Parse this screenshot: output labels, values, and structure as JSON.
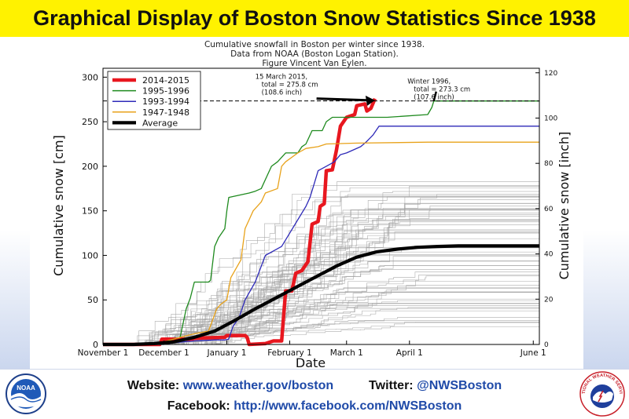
{
  "banner": {
    "title": "Graphical Display of Boston Snow Statistics Since 1938"
  },
  "footer": {
    "website_label": "Website:",
    "website_url": "www.weather.gov/boston",
    "twitter_label": "Twitter:",
    "twitter_handle": "@NWSBoston",
    "facebook_label": "Facebook:",
    "facebook_url": "http://www.facebook.com/NWSBoston"
  },
  "logos": {
    "left_text": "NOAA",
    "right_text": "NATIONAL WEATHER SERVICE"
  },
  "chart_data": {
    "type": "line",
    "title_lines": [
      "Cumulative snowfall in Boston per winter since 1938.",
      "Data from NOAA (Boston Logan Station).",
      "Figure Vincent Van Eylen."
    ],
    "xlabel": "Date",
    "ylabel": "Cumulative snow [cm]",
    "ylabel_right": "Cumulative snow [inch]",
    "xlim": [
      0,
      215
    ],
    "ylim": [
      0,
      310
    ],
    "ylim_right": [
      0,
      122
    ],
    "x_ticks": [
      {
        "x": 0,
        "label": "November 1"
      },
      {
        "x": 30,
        "label": "December 1"
      },
      {
        "x": 61,
        "label": "January 1"
      },
      {
        "x": 92,
        "label": "February 1"
      },
      {
        "x": 120,
        "label": "March 1"
      },
      {
        "x": 151,
        "label": "April 1"
      },
      {
        "x": 212,
        "label": "June 1"
      }
    ],
    "y_ticks": [
      0,
      50,
      100,
      150,
      200,
      250,
      300
    ],
    "y_ticks_right": [
      0,
      20,
      40,
      60,
      80,
      100,
      120
    ],
    "reference_line": {
      "y": 273.3,
      "style": "dashed"
    },
    "annotations": [
      {
        "lines": [
          "15 March 2015,",
          "total = 275.8 cm",
          "(108.6 inch)"
        ],
        "target": [
          134,
          275.8
        ],
        "text_at": [
          75,
          298
        ]
      },
      {
        "lines": [
          "Winter 1996,",
          "total = 273.3 cm",
          "(107.6 inch)"
        ],
        "target": [
          163,
          273.3
        ],
        "text_at": [
          150,
          293
        ]
      }
    ],
    "legend_position": "top-left",
    "series": [
      {
        "name": "2014-2015",
        "color": "#e8171f",
        "width": 4.5,
        "points": [
          [
            0,
            0
          ],
          [
            28,
            0
          ],
          [
            29,
            6
          ],
          [
            44,
            6
          ],
          [
            45,
            7
          ],
          [
            60,
            8
          ],
          [
            61,
            10
          ],
          [
            70,
            10
          ],
          [
            71,
            8
          ],
          [
            72,
            0
          ],
          [
            80,
            1
          ],
          [
            84,
            4
          ],
          [
            88,
            4
          ],
          [
            90,
            60
          ],
          [
            93,
            60
          ],
          [
            95,
            80
          ],
          [
            98,
            83
          ],
          [
            101,
            93
          ],
          [
            103,
            135
          ],
          [
            106,
            138
          ],
          [
            107,
            155
          ],
          [
            109,
            158
          ],
          [
            110,
            195
          ],
          [
            113,
            196
          ],
          [
            115,
            218
          ],
          [
            117,
            245
          ],
          [
            120,
            255
          ],
          [
            124,
            258
          ],
          [
            125,
            268
          ],
          [
            129,
            270
          ],
          [
            130,
            262
          ],
          [
            132,
            265
          ],
          [
            134,
            275.8
          ]
        ]
      },
      {
        "name": "1995-1996",
        "color": "#1e8a1e",
        "width": 1.3,
        "points": [
          [
            0,
            0
          ],
          [
            30,
            0
          ],
          [
            33,
            5
          ],
          [
            38,
            8
          ],
          [
            41,
            40
          ],
          [
            43,
            52
          ],
          [
            45,
            70
          ],
          [
            52,
            70
          ],
          [
            53,
            72
          ],
          [
            55,
            110
          ],
          [
            57,
            120
          ],
          [
            60,
            130
          ],
          [
            61,
            150
          ],
          [
            62,
            165
          ],
          [
            68,
            168
          ],
          [
            72,
            170
          ],
          [
            75,
            172
          ],
          [
            78,
            175
          ],
          [
            80,
            185
          ],
          [
            83,
            200
          ],
          [
            86,
            205
          ],
          [
            90,
            215
          ],
          [
            96,
            215
          ],
          [
            98,
            222
          ],
          [
            100,
            225
          ],
          [
            103,
            240
          ],
          [
            108,
            240
          ],
          [
            110,
            250
          ],
          [
            113,
            255
          ],
          [
            120,
            255
          ],
          [
            140,
            255
          ],
          [
            160,
            258
          ],
          [
            162,
            266
          ],
          [
            163,
            273.3
          ],
          [
            215,
            273.3
          ]
        ]
      },
      {
        "name": "1993-1994",
        "color": "#2e2ab8",
        "width": 1.3,
        "points": [
          [
            0,
            0
          ],
          [
            30,
            0
          ],
          [
            35,
            2
          ],
          [
            40,
            3
          ],
          [
            45,
            4
          ],
          [
            55,
            5
          ],
          [
            60,
            5
          ],
          [
            62,
            6
          ],
          [
            64,
            20
          ],
          [
            67,
            30
          ],
          [
            70,
            50
          ],
          [
            75,
            70
          ],
          [
            80,
            100
          ],
          [
            84,
            105
          ],
          [
            88,
            110
          ],
          [
            92,
            125
          ],
          [
            96,
            140
          ],
          [
            100,
            155
          ],
          [
            102,
            165
          ],
          [
            104,
            180
          ],
          [
            106,
            195
          ],
          [
            110,
            200
          ],
          [
            114,
            205
          ],
          [
            117,
            213
          ],
          [
            120,
            215
          ],
          [
            127,
            222
          ],
          [
            130,
            228
          ],
          [
            133,
            235
          ],
          [
            136,
            245
          ],
          [
            165,
            245
          ],
          [
            215,
            245
          ]
        ]
      },
      {
        "name": "1947-1948",
        "color": "#e8a21a",
        "width": 1.3,
        "points": [
          [
            0,
            0
          ],
          [
            25,
            0
          ],
          [
            30,
            3
          ],
          [
            38,
            8
          ],
          [
            45,
            12
          ],
          [
            52,
            15
          ],
          [
            56,
            40
          ],
          [
            58,
            45
          ],
          [
            61,
            50
          ],
          [
            63,
            75
          ],
          [
            68,
            95
          ],
          [
            70,
            130
          ],
          [
            72,
            140
          ],
          [
            74,
            150
          ],
          [
            78,
            160
          ],
          [
            80,
            170
          ],
          [
            86,
            175
          ],
          [
            88,
            200
          ],
          [
            90,
            205
          ],
          [
            96,
            215
          ],
          [
            100,
            220
          ],
          [
            106,
            222
          ],
          [
            110,
            225
          ],
          [
            125,
            226
          ],
          [
            160,
            227
          ],
          [
            215,
            227
          ]
        ]
      },
      {
        "name": "Average",
        "color": "#000000",
        "width": 4.2,
        "points": [
          [
            0,
            0
          ],
          [
            15,
            0
          ],
          [
            25,
            1
          ],
          [
            35,
            3
          ],
          [
            45,
            8
          ],
          [
            55,
            15
          ],
          [
            65,
            27
          ],
          [
            75,
            40
          ],
          [
            85,
            52
          ],
          [
            95,
            64
          ],
          [
            105,
            76
          ],
          [
            115,
            88
          ],
          [
            125,
            98
          ],
          [
            135,
            104
          ],
          [
            145,
            107
          ],
          [
            155,
            109
          ],
          [
            165,
            110
          ],
          [
            175,
            110.6
          ],
          [
            215,
            110.6
          ]
        ]
      }
    ]
  }
}
